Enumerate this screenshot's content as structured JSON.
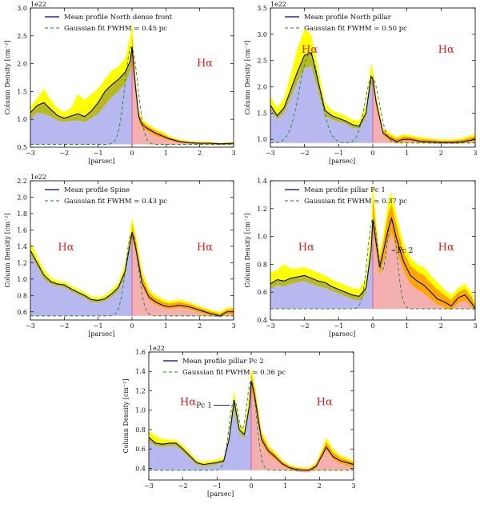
{
  "chart_data": [
    {
      "type": "area",
      "exponent": "1e22",
      "xlabel": "[parsec]",
      "ylabel": "Column Density [cm⁻²]",
      "xlim": [
        -3,
        3
      ],
      "ylim": [
        0.5,
        3.0
      ],
      "yticks": [
        0.5,
        1.0,
        1.5,
        2.0,
        2.5,
        3.0
      ],
      "ytick_labels": [
        "0.5",
        "1.0",
        "1.5",
        "2.0",
        "2.5",
        "3.0"
      ],
      "xticks": [
        -3,
        -2,
        -1,
        0,
        1,
        2,
        3
      ],
      "legend": [
        "Mean profile North dense front",
        "Gaussian fit FWHM = 0.45 pc"
      ],
      "legend_position": "top",
      "halpha_labels": [
        "Hα"
      ],
      "annotations": [],
      "baseline": 0.55,
      "gaussians": [
        {
          "mu": -0.02,
          "fwhm": 0.45,
          "amp": 1.75
        }
      ],
      "x": [
        -3,
        -2.8,
        -2.6,
        -2.4,
        -2.2,
        -2.0,
        -1.8,
        -1.6,
        -1.4,
        -1.2,
        -1.0,
        -0.8,
        -0.6,
        -0.4,
        -0.2,
        -0.05,
        0.0,
        0.1,
        0.2,
        0.3,
        0.5,
        0.7,
        0.9,
        1.1,
        1.4,
        1.7,
        2.0,
        2.3,
        2.6,
        3.0
      ],
      "mean": [
        1.12,
        1.25,
        1.3,
        1.18,
        1.07,
        1.02,
        1.06,
        1.1,
        1.05,
        1.15,
        1.3,
        1.5,
        1.62,
        1.72,
        1.85,
        2.05,
        2.3,
        1.6,
        1.05,
        0.9,
        0.82,
        0.75,
        0.7,
        0.65,
        0.6,
        0.58,
        0.57,
        0.57,
        0.56,
        0.57
      ],
      "lower": [
        1.0,
        1.12,
        1.1,
        1.05,
        0.98,
        0.95,
        0.97,
        0.98,
        0.95,
        1.02,
        1.1,
        1.25,
        1.4,
        1.5,
        1.65,
        1.85,
        2.0,
        1.45,
        0.95,
        0.84,
        0.77,
        0.7,
        0.66,
        0.62,
        0.58,
        0.56,
        0.55,
        0.55,
        0.54,
        0.55
      ],
      "upper": [
        1.22,
        1.38,
        1.55,
        1.35,
        1.2,
        1.13,
        1.2,
        1.45,
        1.35,
        1.45,
        1.55,
        1.72,
        1.88,
        1.95,
        2.1,
        2.5,
        2.75,
        1.8,
        1.18,
        1.0,
        0.9,
        0.83,
        0.78,
        0.7,
        0.64,
        0.61,
        0.6,
        0.6,
        0.58,
        0.6
      ],
      "shade_top": [
        1.02,
        1.13,
        1.12,
        1.06,
        0.99,
        0.96,
        0.98,
        1.0,
        0.96,
        1.03,
        1.12,
        1.28,
        1.42,
        1.52,
        1.67,
        1.87,
        2.3,
        1.45,
        0.95,
        0.84,
        0.77,
        0.7,
        0.66,
        0.62,
        0.58,
        0.56,
        0.55,
        0.55,
        0.54,
        0.55
      ]
    },
    {
      "type": "area",
      "exponent": "1e22",
      "xlabel": "[parsec]",
      "ylabel": "Column Density [cm⁻²]",
      "xlim": [
        -3,
        3
      ],
      "ylim": [
        0.85,
        3.5
      ],
      "yticks": [
        1.0,
        1.5,
        2.0,
        2.5,
        3.0,
        3.5
      ],
      "ytick_labels": [
        "1.0",
        "1.5",
        "2.0",
        "2.5",
        "3.0",
        "3.5"
      ],
      "xticks": [
        -3,
        -2,
        -1,
        0,
        1,
        2,
        3
      ],
      "legend": [
        "Mean profile North pillar",
        "Gaussian fit FWHM = 0.50 pc"
      ],
      "legend_position": "top",
      "halpha_labels": [
        "Hα",
        "Hα"
      ],
      "annotations": [],
      "baseline": 0.93,
      "gaussians": [
        {
          "mu": -0.02,
          "fwhm": 0.5,
          "amp": 1.25
        },
        {
          "mu": -1.85,
          "fwhm": 0.7,
          "amp": 1.7
        }
      ],
      "x": [
        -3,
        -2.8,
        -2.6,
        -2.4,
        -2.2,
        -2.0,
        -1.8,
        -1.6,
        -1.4,
        -1.2,
        -1.0,
        -0.8,
        -0.6,
        -0.4,
        -0.2,
        -0.05,
        0.0,
        0.1,
        0.3,
        0.5,
        0.7,
        0.9,
        1.1,
        1.4,
        1.7,
        2.0,
        2.3,
        2.6,
        3.0
      ],
      "mean": [
        1.65,
        1.45,
        1.6,
        1.95,
        2.3,
        2.6,
        2.65,
        2.1,
        1.55,
        1.45,
        1.4,
        1.35,
        1.28,
        1.25,
        1.5,
        2.2,
        2.15,
        1.7,
        1.12,
        1.02,
        0.96,
        1.0,
        1.0,
        0.96,
        0.95,
        0.94,
        0.94,
        0.95,
        1.0
      ],
      "lower": [
        1.55,
        1.38,
        1.5,
        1.8,
        2.1,
        2.35,
        2.4,
        1.9,
        1.45,
        1.38,
        1.33,
        1.3,
        1.22,
        1.2,
        1.42,
        2.05,
        2.0,
        1.6,
        1.07,
        0.98,
        0.92,
        0.95,
        0.96,
        0.93,
        0.92,
        0.91,
        0.91,
        0.92,
        0.96
      ],
      "upper": [
        1.82,
        1.6,
        1.78,
        2.25,
        2.75,
        3.1,
        3.0,
        2.35,
        1.7,
        1.55,
        1.5,
        1.45,
        1.38,
        1.35,
        1.65,
        2.45,
        2.35,
        1.85,
        1.22,
        1.12,
        1.05,
        1.1,
        1.08,
        1.04,
        1.02,
        1.0,
        1.0,
        1.02,
        1.1
      ],
      "shade_top": [
        1.55,
        1.38,
        1.5,
        1.8,
        2.05,
        2.2,
        2.25,
        1.9,
        1.45,
        1.38,
        1.33,
        1.3,
        1.22,
        1.2,
        1.42,
        2.05,
        2.15,
        1.6,
        1.07,
        0.98,
        0.92,
        0.95,
        0.96,
        0.93,
        0.92,
        0.91,
        0.91,
        0.92,
        0.96
      ]
    },
    {
      "type": "area",
      "exponent": "1e22",
      "xlabel": "[parsec]",
      "ylabel": "Column Density [cm⁻²]",
      "xlim": [
        -3,
        3
      ],
      "ylim": [
        0.5,
        2.2
      ],
      "yticks": [
        0.6,
        0.8,
        1.0,
        1.2,
        1.4,
        1.6,
        1.8,
        2.0,
        2.2
      ],
      "ytick_labels": [
        "0.6",
        "0.8",
        "1.0",
        "1.2",
        "1.4",
        "1.6",
        "1.8",
        "2.0",
        "2.2"
      ],
      "xticks": [
        -3,
        -2,
        -1,
        0,
        1,
        2,
        3
      ],
      "legend": [
        "Mean profile Spine",
        "Gaussian fit FWHM = 0.43 pc"
      ],
      "legend_position": "top",
      "halpha_labels": [
        "Hα",
        "Hα"
      ],
      "annotations": [],
      "baseline": 0.55,
      "gaussians": [
        {
          "mu": 0.0,
          "fwhm": 0.43,
          "amp": 1.02
        }
      ],
      "x": [
        -3,
        -2.8,
        -2.6,
        -2.4,
        -2.2,
        -2.0,
        -1.8,
        -1.6,
        -1.4,
        -1.2,
        -1.0,
        -0.8,
        -0.6,
        -0.4,
        -0.2,
        -0.05,
        0.0,
        0.1,
        0.3,
        0.5,
        0.7,
        0.9,
        1.1,
        1.4,
        1.7,
        2.0,
        2.3,
        2.6,
        2.8,
        3.0
      ],
      "mean": [
        1.35,
        1.2,
        1.05,
        0.97,
        0.94,
        0.93,
        0.88,
        0.84,
        0.8,
        0.75,
        0.74,
        0.76,
        0.82,
        0.9,
        1.1,
        1.45,
        1.57,
        1.4,
        0.95,
        0.78,
        0.72,
        0.68,
        0.66,
        0.68,
        0.66,
        0.62,
        0.58,
        0.55,
        0.6,
        0.6
      ],
      "lower": [
        1.3,
        1.15,
        1.0,
        0.94,
        0.91,
        0.9,
        0.85,
        0.81,
        0.77,
        0.72,
        0.71,
        0.73,
        0.78,
        0.86,
        1.04,
        1.38,
        1.5,
        1.33,
        0.9,
        0.74,
        0.69,
        0.65,
        0.63,
        0.65,
        0.63,
        0.59,
        0.55,
        0.53,
        0.57,
        0.57
      ],
      "upper": [
        1.45,
        1.28,
        1.12,
        1.02,
        0.98,
        0.97,
        0.92,
        0.88,
        0.84,
        0.79,
        0.78,
        0.8,
        0.87,
        0.96,
        1.2,
        1.6,
        1.75,
        1.58,
        1.1,
        0.88,
        0.8,
        0.76,
        0.73,
        0.75,
        0.72,
        0.67,
        0.63,
        0.6,
        0.65,
        0.66
      ],
      "shade_top": [
        1.3,
        1.15,
        1.0,
        0.94,
        0.91,
        0.9,
        0.85,
        0.81,
        0.77,
        0.72,
        0.71,
        0.73,
        0.78,
        0.86,
        1.04,
        1.38,
        1.57,
        1.33,
        0.9,
        0.74,
        0.69,
        0.65,
        0.63,
        0.65,
        0.63,
        0.59,
        0.55,
        0.53,
        0.57,
        0.57
      ]
    },
    {
      "type": "area",
      "exponent": "",
      "xlabel": "[parsec]",
      "ylabel": "Column Density [cm⁻²]",
      "xlim": [
        -3,
        3
      ],
      "ylim": [
        0.4,
        1.4
      ],
      "yticks": [
        0.4,
        0.6,
        0.8,
        1.0,
        1.2,
        1.4
      ],
      "ytick_labels": [
        "0.4",
        "0.6",
        "0.8",
        "1.0",
        "1.2",
        "1.4"
      ],
      "xticks": [
        -3,
        -2,
        -1,
        0,
        1,
        2,
        3
      ],
      "legend": [
        "Mean profile pillar Pc 1",
        "Gaussian fit FWHM = 0.37 pc"
      ],
      "legend_position": "top",
      "halpha_labels": [
        "Hα",
        "Hα"
      ],
      "annotations": [
        "Pc 2"
      ],
      "baseline": 0.48,
      "gaussians": [
        {
          "mu": 0.0,
          "fwhm": 0.37,
          "amp": 0.64
        },
        {
          "mu": 0.55,
          "fwhm": 0.37,
          "amp": 0.64
        }
      ],
      "x": [
        -3,
        -2.8,
        -2.6,
        -2.4,
        -2.2,
        -2.0,
        -1.8,
        -1.6,
        -1.4,
        -1.2,
        -1.0,
        -0.8,
        -0.6,
        -0.4,
        -0.2,
        -0.05,
        0.0,
        0.1,
        0.2,
        0.3,
        0.45,
        0.55,
        0.7,
        0.9,
        1.1,
        1.3,
        1.5,
        1.7,
        1.9,
        2.1,
        2.3,
        2.5,
        2.7,
        2.9,
        3.0
      ],
      "mean": [
        0.66,
        0.69,
        0.68,
        0.7,
        0.71,
        0.72,
        0.7,
        0.68,
        0.67,
        0.64,
        0.62,
        0.6,
        0.58,
        0.57,
        0.63,
        0.9,
        1.12,
        0.95,
        0.78,
        0.88,
        1.05,
        1.13,
        0.98,
        0.82,
        0.72,
        0.68,
        0.65,
        0.6,
        0.55,
        0.53,
        0.5,
        0.56,
        0.58,
        0.52,
        0.48
      ],
      "lower": [
        0.62,
        0.65,
        0.64,
        0.66,
        0.67,
        0.68,
        0.66,
        0.64,
        0.63,
        0.61,
        0.59,
        0.57,
        0.55,
        0.54,
        0.59,
        0.84,
        1.05,
        0.88,
        0.72,
        0.8,
        0.96,
        1.03,
        0.9,
        0.75,
        0.66,
        0.62,
        0.59,
        0.55,
        0.51,
        0.49,
        0.47,
        0.52,
        0.54,
        0.49,
        0.46
      ],
      "upper": [
        0.74,
        0.76,
        0.8,
        0.77,
        0.77,
        0.78,
        0.76,
        0.74,
        0.72,
        0.69,
        0.67,
        0.65,
        0.63,
        0.62,
        0.7,
        1.05,
        1.4,
        1.12,
        0.88,
        1.0,
        1.25,
        1.32,
        1.15,
        0.95,
        0.85,
        0.8,
        0.78,
        0.72,
        0.67,
        0.62,
        0.58,
        0.63,
        0.66,
        0.6,
        0.52
      ],
      "shade_top": [
        0.62,
        0.65,
        0.64,
        0.66,
        0.67,
        0.68,
        0.66,
        0.64,
        0.63,
        0.61,
        0.59,
        0.57,
        0.55,
        0.54,
        0.59,
        0.84,
        1.12,
        0.88,
        0.72,
        0.8,
        0.96,
        1.03,
        0.9,
        0.75,
        0.66,
        0.62,
        0.59,
        0.55,
        0.51,
        0.49,
        0.47,
        0.52,
        0.54,
        0.49,
        0.46
      ]
    },
    {
      "type": "area",
      "exponent": "1e22",
      "xlabel": "[parsec]",
      "ylabel": "Column Density [cm⁻²]",
      "xlim": [
        -3,
        3
      ],
      "ylim": [
        0.28,
        1.6
      ],
      "yticks": [
        0.4,
        0.6,
        0.8,
        1.0,
        1.2,
        1.4,
        1.6
      ],
      "ytick_labels": [
        "0.4",
        "0.6",
        "0.8",
        "1.0",
        "1.2",
        "1.4",
        "1.6"
      ],
      "xticks": [
        -3,
        -2,
        -1,
        0,
        1,
        2,
        3
      ],
      "legend": [
        "Mean profile pillar Pc 2",
        "Gaussian fit FWHM = 0.36 pc"
      ],
      "legend_position": "top",
      "halpha_labels": [
        "Hα",
        "Hα"
      ],
      "annotations": [
        "Pc 1"
      ],
      "baseline": 0.38,
      "gaussians": [
        {
          "mu": 0.0,
          "fwhm": 0.36,
          "amp": 0.92
        },
        {
          "mu": -0.5,
          "fwhm": 0.36,
          "amp": 0.72
        }
      ],
      "x": [
        -3,
        -2.8,
        -2.6,
        -2.4,
        -2.2,
        -2.0,
        -1.8,
        -1.6,
        -1.4,
        -1.2,
        -1.0,
        -0.8,
        -0.65,
        -0.5,
        -0.35,
        -0.2,
        -0.05,
        0.0,
        0.1,
        0.3,
        0.5,
        0.7,
        0.9,
        1.1,
        1.3,
        1.5,
        1.7,
        1.9,
        2.1,
        2.2,
        2.4,
        2.6,
        2.8,
        3.0
      ],
      "mean": [
        0.72,
        0.66,
        0.65,
        0.66,
        0.66,
        0.6,
        0.53,
        0.46,
        0.44,
        0.45,
        0.46,
        0.48,
        0.7,
        1.1,
        0.8,
        0.75,
        1.05,
        1.3,
        1.15,
        0.7,
        0.58,
        0.52,
        0.45,
        0.41,
        0.39,
        0.38,
        0.38,
        0.42,
        0.55,
        0.62,
        0.52,
        0.48,
        0.46,
        0.44
      ],
      "lower": [
        0.68,
        0.63,
        0.62,
        0.63,
        0.63,
        0.57,
        0.5,
        0.44,
        0.42,
        0.43,
        0.44,
        0.46,
        0.66,
        1.0,
        0.76,
        0.71,
        0.97,
        1.2,
        1.06,
        0.65,
        0.55,
        0.49,
        0.43,
        0.39,
        0.37,
        0.36,
        0.36,
        0.4,
        0.52,
        0.58,
        0.49,
        0.45,
        0.43,
        0.41
      ],
      "upper": [
        0.78,
        0.74,
        0.7,
        0.7,
        0.69,
        0.64,
        0.57,
        0.49,
        0.47,
        0.48,
        0.49,
        0.52,
        0.76,
        1.2,
        0.86,
        0.8,
        1.2,
        1.45,
        1.28,
        0.8,
        0.64,
        0.57,
        0.49,
        0.44,
        0.42,
        0.41,
        0.41,
        0.46,
        0.62,
        0.72,
        0.6,
        0.54,
        0.51,
        0.48
      ],
      "shade_top": [
        0.68,
        0.63,
        0.62,
        0.63,
        0.63,
        0.57,
        0.5,
        0.44,
        0.42,
        0.43,
        0.44,
        0.46,
        0.66,
        1.0,
        0.76,
        0.71,
        0.97,
        1.3,
        1.06,
        0.65,
        0.55,
        0.49,
        0.43,
        0.39,
        0.37,
        0.36,
        0.36,
        0.4,
        0.52,
        0.58,
        0.49,
        0.45,
        0.43,
        0.41
      ]
    }
  ],
  "colors": {
    "mean_line": "#000080",
    "fit_line": "#1a8a1a",
    "upper_band": "#ffff00",
    "mean_band": "#b8b820",
    "left_fill": "#b8b8f0",
    "right_fill": "#f4b0b0",
    "orange_band": "#ffa500",
    "halpha": "#d42020",
    "center_line": "#e04080"
  }
}
